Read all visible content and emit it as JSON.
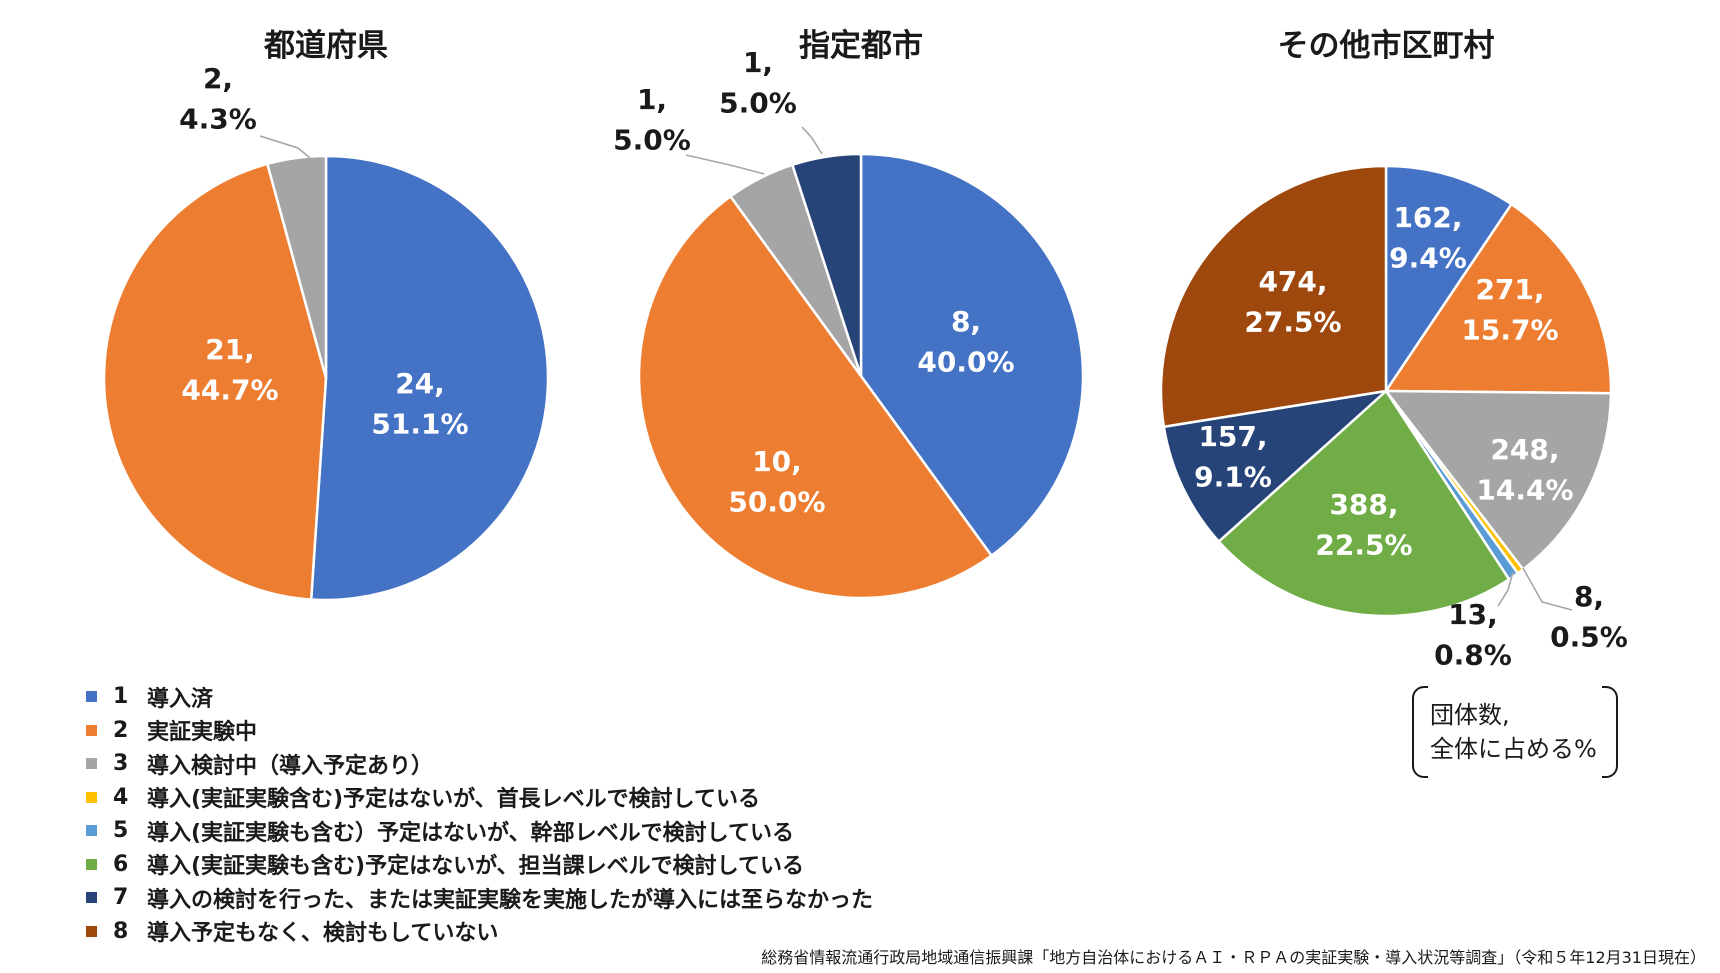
{
  "colors": [
    "#4472C4",
    "#ED7D31",
    "#A5A5A5",
    "#FFC000",
    "#5B9BD5",
    "#70AD47",
    "#264478",
    "#9E480E"
  ],
  "legend": [
    {
      "num": "1",
      "label": "導入済",
      "color": "#4472C4"
    },
    {
      "num": "2",
      "label": "実証実験中",
      "color": "#ED7D31"
    },
    {
      "num": "3",
      "label": "導入検討中（導入予定あり）",
      "color": "#A5A5A5"
    },
    {
      "num": "4",
      "label": "導入(実証実験含む)予定はないが、首長レベルで検討している",
      "color": "#FFC000"
    },
    {
      "num": "5",
      "label": "導入(実証実験も含む）予定はないが、幹部レベルで検討している",
      "color": "#5B9BD5"
    },
    {
      "num": "6",
      "label": "導入(実証実験も含む)予定はないが、担当課レベルで検討している",
      "color": "#70AD47"
    },
    {
      "num": "7",
      "label": "導入の検討を行った、または実証実験を実施したが導入には至らなかった",
      "color": "#264478"
    },
    {
      "num": "8",
      "label": "導入予定もなく、検討もしていない",
      "color": "#9E480E"
    }
  ],
  "note": {
    "line1": "団体数,",
    "line2": "全体に占める%"
  },
  "source": "総務省情報流通行政局地域通信振興課「地方自治体におけるＡＩ・ＲＰＡの実証実験・導入状況等調査」（令和５年12月31日現在）",
  "chart_data": [
    {
      "type": "pie",
      "title": "都道府県",
      "categories": [
        "1",
        "2",
        "3"
      ],
      "values": [
        24,
        21,
        2
      ],
      "labels": [
        {
          "count": "24,",
          "pct": "51.1%"
        },
        {
          "count": "21,",
          "pct": "44.7%"
        },
        {
          "count": "2,",
          "pct": "4.3%"
        }
      ]
    },
    {
      "type": "pie",
      "title": "指定都市",
      "categories": [
        "1",
        "2",
        "3",
        "7"
      ],
      "values": [
        8,
        10,
        1,
        1
      ],
      "labels": [
        {
          "count": "8,",
          "pct": "40.0%"
        },
        {
          "count": "10,",
          "pct": "50.0%"
        },
        {
          "count": "1,",
          "pct": "5.0%"
        },
        {
          "count": "1,",
          "pct": "5.0%"
        }
      ]
    },
    {
      "type": "pie",
      "title": "その他市区町村",
      "categories": [
        "1",
        "2",
        "3",
        "4",
        "5",
        "6",
        "7",
        "8"
      ],
      "values": [
        162,
        271,
        248,
        8,
        13,
        388,
        157,
        474
      ],
      "labels": [
        {
          "count": "162,",
          "pct": "9.4%"
        },
        {
          "count": "271,",
          "pct": "15.7%"
        },
        {
          "count": "248,",
          "pct": "14.4%"
        },
        {
          "count": "8,",
          "pct": "0.5%"
        },
        {
          "count": "13,",
          "pct": "0.8%"
        },
        {
          "count": "388,",
          "pct": "22.5%"
        },
        {
          "count": "157,",
          "pct": "9.1%"
        },
        {
          "count": "474,",
          "pct": "27.5%"
        }
      ]
    }
  ]
}
